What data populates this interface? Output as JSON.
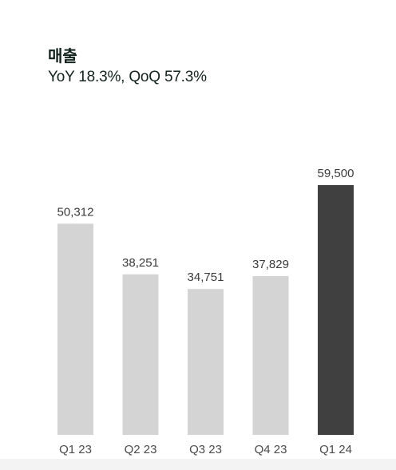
{
  "header": {
    "title": "매출",
    "subtitle": "YoY 18.3%, QoQ 57.3%"
  },
  "colors": {
    "normal_bar": "#d4d4d4",
    "highlight_bar": "#404040",
    "text": "#13231d"
  },
  "chart_data": {
    "type": "bar",
    "title": "매출",
    "subtitle": "YoY 18.3%, QoQ 57.3%",
    "categories": [
      "Q1 23",
      "Q2 23",
      "Q3 23",
      "Q4 23",
      "Q1 24"
    ],
    "values": [
      50312,
      38251,
      34751,
      37829,
      59500
    ],
    "value_labels": [
      "50,312",
      "38,251",
      "34,751",
      "37,829",
      "59,500"
    ],
    "highlight_index": 4,
    "ylim": [
      0,
      59500
    ],
    "grid": false,
    "legend": "none"
  }
}
